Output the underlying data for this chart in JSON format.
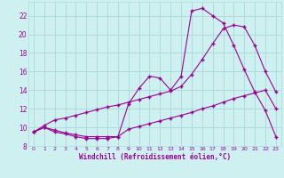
{
  "xlabel": "Windchill (Refroidissement éolien,°C)",
  "bg_color": "#cef0f0",
  "grid_color": "#aadddd",
  "line_color": "#990099",
  "xlim": [
    -0.5,
    23.5
  ],
  "ylim": [
    8,
    23.5
  ],
  "xticks": [
    0,
    1,
    2,
    3,
    4,
    5,
    6,
    7,
    8,
    9,
    10,
    11,
    12,
    13,
    14,
    15,
    16,
    17,
    18,
    19,
    20,
    21,
    22,
    23
  ],
  "yticks": [
    8,
    10,
    12,
    14,
    16,
    18,
    20,
    22
  ],
  "line1_x": [
    0,
    1,
    2,
    3,
    4,
    5,
    6,
    7,
    8,
    9,
    10,
    11,
    12,
    13,
    14,
    15,
    16,
    17,
    18,
    19,
    20,
    21,
    22,
    23
  ],
  "line1_y": [
    9.5,
    10.0,
    9.5,
    9.3,
    9.0,
    8.8,
    8.8,
    8.8,
    9.0,
    12.5,
    14.2,
    15.5,
    15.3,
    14.0,
    15.5,
    22.5,
    22.8,
    22.0,
    21.2,
    18.8,
    16.2,
    13.8,
    11.8,
    9.0
  ],
  "line2_x": [
    0,
    1,
    2,
    3,
    4,
    5,
    6,
    7,
    8,
    9,
    10,
    11,
    12,
    13,
    14,
    15,
    16,
    17,
    18,
    19,
    20,
    21,
    22,
    23
  ],
  "line2_y": [
    9.5,
    10.0,
    9.7,
    9.4,
    9.2,
    9.0,
    9.0,
    9.0,
    9.0,
    9.8,
    10.1,
    10.4,
    10.7,
    11.0,
    11.3,
    11.6,
    12.0,
    12.3,
    12.7,
    13.1,
    13.4,
    13.7,
    14.0,
    12.0
  ],
  "line3_x": [
    0,
    1,
    2,
    3,
    4,
    5,
    6,
    7,
    8,
    9,
    10,
    11,
    12,
    13,
    14,
    15,
    16,
    17,
    18,
    19,
    20,
    21,
    22,
    23
  ],
  "line3_y": [
    9.5,
    10.2,
    10.8,
    11.0,
    11.3,
    11.6,
    11.9,
    12.2,
    12.4,
    12.7,
    13.0,
    13.3,
    13.6,
    13.9,
    14.4,
    15.7,
    17.3,
    19.0,
    20.6,
    21.0,
    20.8,
    18.8,
    16.0,
    13.8
  ]
}
